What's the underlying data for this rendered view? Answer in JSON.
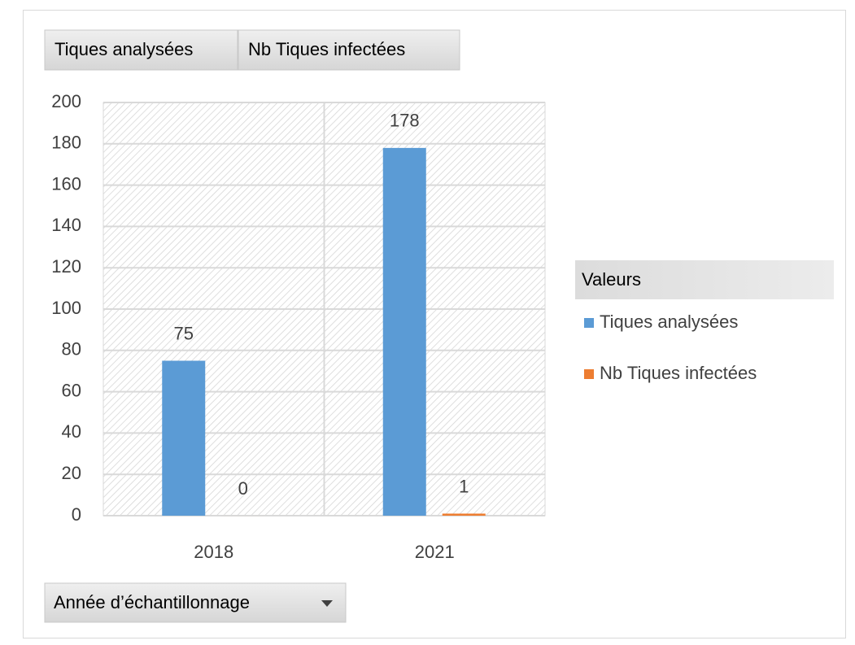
{
  "chart_data": {
    "type": "bar",
    "categories": [
      "2018",
      "2021"
    ],
    "series": [
      {
        "name": "Tiques analysées",
        "color": "#5b9bd5",
        "values": [
          75,
          178
        ]
      },
      {
        "name": "Nb Tiques infectées",
        "color": "#ed7d31",
        "values": [
          0,
          1
        ]
      }
    ],
    "ylim": [
      0,
      200
    ],
    "yticks": [
      0,
      20,
      40,
      60,
      80,
      100,
      120,
      140,
      160,
      180,
      200
    ],
    "grid": true,
    "legend_title": "Valeurs",
    "x_label": "Année d’échantillonnage",
    "legend": "right"
  }
}
